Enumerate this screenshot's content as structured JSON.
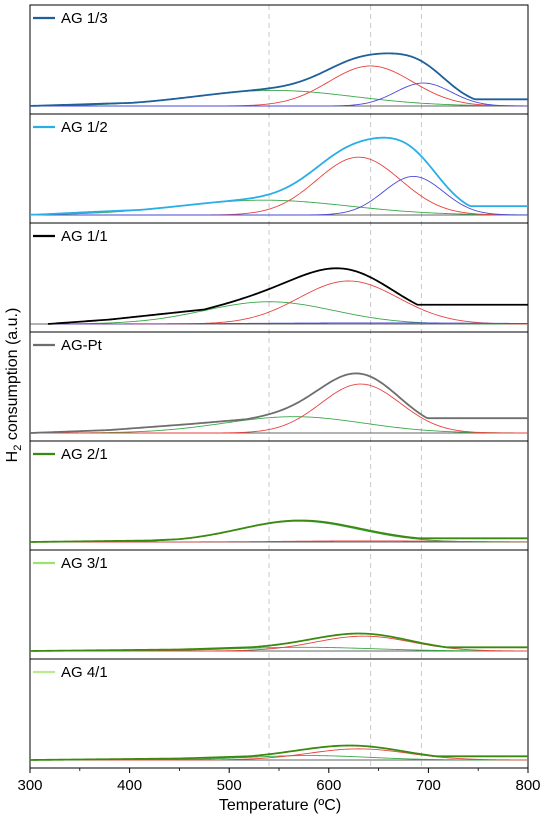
{
  "chart_data": {
    "type": "line",
    "xlabel": "Temperature (ºC)",
    "ylabel": "H2 consumption (a.u.)",
    "ylabel_main": "H",
    "ylabel_sub": "2",
    "ylabel_rest": " consumption (a.u.)",
    "xlim": [
      300,
      800
    ],
    "xticks": [
      300,
      400,
      500,
      600,
      700,
      800
    ],
    "reference_lines_x": [
      540,
      642,
      693
    ],
    "grid": false,
    "legend_position": "top-left",
    "colors": {
      "fit_peak_1": "#3aa84a",
      "fit_peak_2": "#e8423f",
      "fit_peak_3": "#4a4ad8",
      "reference_line": "#c8c8c8"
    },
    "panels": [
      {
        "label": "AG 1/3",
        "color": "#1f5f9a",
        "x_start": 300,
        "x_end": 800,
        "ymax": 1.2,
        "baseline": [
          [
            300,
            0.0
          ],
          [
            370,
            0.03
          ],
          [
            450,
            0.06
          ],
          [
            520,
            0.09
          ]
        ],
        "fits": [
          {
            "center": 545,
            "height": 0.21,
            "width": 80
          },
          {
            "center": 642,
            "height": 0.54,
            "width": 42
          },
          {
            "center": 695,
            "height": 0.31,
            "width": 28
          }
        ]
      },
      {
        "label": "AG 1/2",
        "color": "#2aaee8",
        "x_start": 300,
        "x_end": 800,
        "ymax": 1.2,
        "baseline": [
          [
            300,
            0.0
          ],
          [
            360,
            0.04
          ],
          [
            430,
            0.08
          ],
          [
            500,
            0.12
          ]
        ],
        "fits": [
          {
            "center": 535,
            "height": 0.2,
            "width": 85
          },
          {
            "center": 630,
            "height": 0.78,
            "width": 42
          },
          {
            "center": 685,
            "height": 0.52,
            "width": 30
          }
        ]
      },
      {
        "label": "AG 1/1",
        "color": "#000000",
        "x_start": 318,
        "x_end": 800,
        "ymax": 1.2,
        "baseline": [
          [
            318,
            0.0
          ],
          [
            380,
            0.06
          ],
          [
            450,
            0.16
          ],
          [
            520,
            0.26
          ]
        ],
        "fits": [
          {
            "center": 540,
            "height": 0.3,
            "width": 65
          },
          {
            "center": 620,
            "height": 0.58,
            "width": 50
          },
          {
            "center": 650,
            "height": 0.015,
            "width": 120
          }
        ]
      },
      {
        "label": "AG-Pt",
        "color": "#6e6e6e",
        "x_start": 300,
        "x_end": 800,
        "ymax": 1.2,
        "baseline": [
          [
            300,
            0.0
          ],
          [
            380,
            0.04
          ],
          [
            460,
            0.12
          ],
          [
            530,
            0.2
          ]
        ],
        "fits": [
          {
            "center": 565,
            "height": 0.22,
            "width": 70
          },
          {
            "center": 632,
            "height": 0.66,
            "width": 40
          }
        ]
      },
      {
        "label": "AG 2/1",
        "color": "#3b8a10",
        "x_start": 300,
        "x_end": 800,
        "ymax": 1.2,
        "baseline": [
          [
            300,
            0.0
          ],
          [
            420,
            0.02
          ],
          [
            470,
            0.05
          ]
        ],
        "fits": [
          {
            "center": 570,
            "height": 0.28,
            "width": 60
          },
          {
            "center": 640,
            "height": 0.015,
            "width": 80
          }
        ]
      },
      {
        "label": "AG 3/1",
        "color": "#3b8a10",
        "legend_color": "#9be36e",
        "x_start": 300,
        "x_end": 800,
        "ymax": 1.2,
        "baseline": [
          [
            300,
            0.0
          ],
          [
            450,
            0.02
          ],
          [
            520,
            0.05
          ]
        ],
        "fits": [
          {
            "center": 575,
            "height": 0.05,
            "width": 70
          },
          {
            "center": 635,
            "height": 0.2,
            "width": 48
          }
        ]
      },
      {
        "label": "AG 4/1",
        "color": "#3b8a10",
        "legend_color": "#b9ec8e",
        "x_start": 300,
        "x_end": 800,
        "ymax": 1.2,
        "baseline": [
          [
            300,
            0.0
          ],
          [
            450,
            0.02
          ],
          [
            520,
            0.05
          ]
        ],
        "fits": [
          {
            "center": 580,
            "height": 0.06,
            "width": 60
          },
          {
            "center": 630,
            "height": 0.15,
            "width": 50
          }
        ]
      }
    ]
  }
}
